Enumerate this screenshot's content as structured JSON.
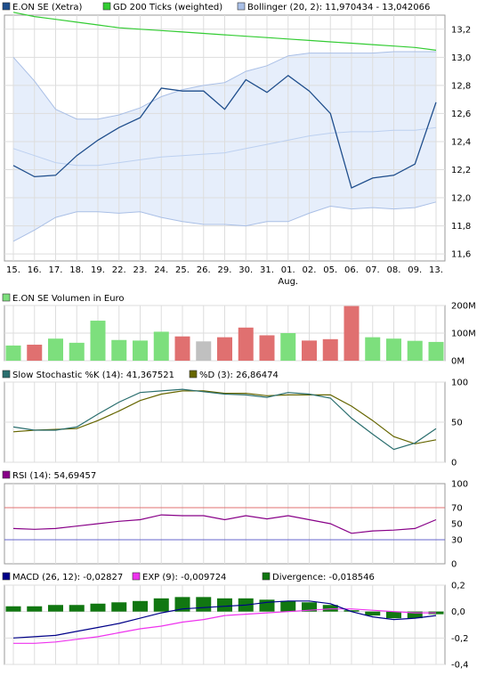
{
  "colors": {
    "price": "#1f4e8c",
    "gd200": "#33cc33",
    "bollinger_fill": "#e6eefb",
    "bollinger_line": "#a9bfe6",
    "bollinger_mid": "#bcd0f0",
    "volume_up": "#7ddf7d",
    "volume_down": "#e07070",
    "volume_flat": "#c0c0c0",
    "stoch_k": "#2a6e6e",
    "stoch_d": "#666600",
    "rsi": "#880088",
    "rsi_70": "#e07070",
    "rsi_30": "#6666cc",
    "macd": "#000088",
    "exp": "#ee33ee",
    "divergence": "#117711",
    "grid": "#dddddd"
  },
  "chart_data": [
    {
      "type": "line",
      "panel": "price",
      "x": [
        "15.",
        "16.",
        "17.",
        "18.",
        "19.",
        "22.",
        "23.",
        "24.",
        "25.",
        "26.",
        "29.",
        "30.",
        "31.",
        "01.",
        "02.",
        "05.",
        "06.",
        "07.",
        "08.",
        "09.",
        "13."
      ],
      "x_month_label": "Aug.",
      "yticks": [
        "11,6",
        "11,8",
        "12,0",
        "12,2",
        "12,4",
        "12,6",
        "12,8",
        "13,0",
        "13,2"
      ],
      "ylim": [
        11.55,
        13.3
      ],
      "legend": [
        {
          "label": "E.ON SE (Xetra)",
          "color": "#1f4e8c"
        },
        {
          "label": "GD 200 Ticks (weighted)",
          "color": "#33cc33"
        },
        {
          "label": "Bollinger (20, 2): 11,970434 - 13,042066",
          "color": "#a9bfe6"
        }
      ],
      "series": [
        {
          "id": "price",
          "values": [
            12.23,
            12.15,
            12.16,
            12.3,
            12.41,
            12.5,
            12.57,
            12.78,
            12.76,
            12.76,
            12.63,
            12.84,
            12.75,
            12.87,
            12.76,
            12.6,
            12.07,
            12.14,
            12.16,
            12.24,
            12.68
          ]
        },
        {
          "id": "gd200",
          "values": [
            13.32,
            13.29,
            13.27,
            13.25,
            13.23,
            13.21,
            13.2,
            13.19,
            13.18,
            13.17,
            13.16,
            13.15,
            13.14,
            13.13,
            13.12,
            13.11,
            13.1,
            13.09,
            13.08,
            13.07,
            13.05
          ]
        },
        {
          "id": "boll_upper",
          "values": [
            13.0,
            12.83,
            12.63,
            12.56,
            12.56,
            12.59,
            12.64,
            12.72,
            12.77,
            12.8,
            12.82,
            12.9,
            12.94,
            13.01,
            13.03,
            13.03,
            13.03,
            13.03,
            13.04,
            13.04,
            13.04
          ]
        },
        {
          "id": "boll_mid",
          "values": [
            12.35,
            12.3,
            12.25,
            12.23,
            12.23,
            12.25,
            12.27,
            12.29,
            12.3,
            12.31,
            12.32,
            12.35,
            12.38,
            12.41,
            12.44,
            12.46,
            12.47,
            12.47,
            12.48,
            12.48,
            12.5
          ]
        },
        {
          "id": "boll_lower",
          "values": [
            11.69,
            11.77,
            11.86,
            11.9,
            11.9,
            11.89,
            11.9,
            11.86,
            11.83,
            11.81,
            11.81,
            11.8,
            11.83,
            11.83,
            11.89,
            11.94,
            11.92,
            11.93,
            11.92,
            11.93,
            11.97
          ]
        }
      ]
    },
    {
      "type": "bar",
      "panel": "volume",
      "legend": [
        {
          "label": "E.ON SE Volumen in Euro",
          "color": "#7ddf7d"
        }
      ],
      "yticks": [
        "0M",
        "100M",
        "200M"
      ],
      "ylim": [
        0,
        200
      ],
      "values": [
        55,
        58,
        80,
        65,
        145,
        75,
        73,
        105,
        88,
        70,
        85,
        120,
        92,
        100,
        73,
        78,
        198,
        85,
        80,
        72,
        68
      ],
      "direction": [
        "up",
        "down",
        "up",
        "up",
        "up",
        "up",
        "up",
        "up",
        "down",
        "flat",
        "down",
        "down",
        "down",
        "up",
        "down",
        "down",
        "down",
        "up",
        "up",
        "up",
        "up"
      ]
    },
    {
      "type": "line",
      "panel": "stochastic",
      "legend": [
        {
          "label": "Slow Stochastic %K (14): 41,367521",
          "color": "#2a6e6e"
        },
        {
          "label": "%D (3): 26,86474",
          "color": "#666600"
        }
      ],
      "yticks": [
        "0",
        "50",
        "100"
      ],
      "ylim": [
        0,
        100
      ],
      "series": [
        {
          "id": "k",
          "values": [
            44,
            40,
            40,
            44,
            60,
            75,
            87,
            89,
            91,
            88,
            85,
            84,
            81,
            87,
            85,
            80,
            55,
            35,
            16,
            24,
            42
          ]
        },
        {
          "id": "d",
          "values": [
            38,
            40,
            41,
            42,
            52,
            64,
            77,
            85,
            89,
            89,
            86,
            86,
            83,
            84,
            84,
            84,
            70,
            52,
            32,
            23,
            28
          ]
        }
      ]
    },
    {
      "type": "line",
      "panel": "rsi",
      "legend": [
        {
          "label": "RSI (14): 54,69457",
          "color": "#880088"
        }
      ],
      "yticks": [
        "0",
        "30",
        "50",
        "70",
        "100"
      ],
      "ylim": [
        0,
        100
      ],
      "reference_lines": [
        70,
        30
      ],
      "series": [
        {
          "id": "rsi",
          "values": [
            44,
            43,
            44,
            47,
            50,
            53,
            55,
            61,
            60,
            60,
            55,
            60,
            56,
            60,
            55,
            50,
            38,
            41,
            42,
            44,
            55
          ]
        }
      ]
    },
    {
      "type": "bar",
      "panel": "macd",
      "legend": [
        {
          "label": "MACD (26, 12): -0,02827",
          "color": "#000088"
        },
        {
          "label": "EXP (9): -0,009724",
          "color": "#ee33ee"
        },
        {
          "label": "Divergence: -0,018546",
          "color": "#117711"
        }
      ],
      "yticks": [
        "-0,4",
        "-0,2",
        "0,0",
        "0,2"
      ],
      "ylim": [
        -0.4,
        0.2
      ],
      "divergence": [
        0.04,
        0.04,
        0.05,
        0.05,
        0.06,
        0.07,
        0.08,
        0.1,
        0.11,
        0.11,
        0.1,
        0.1,
        0.09,
        0.08,
        0.07,
        0.05,
        0.01,
        -0.03,
        -0.05,
        -0.05,
        -0.02
      ],
      "series": [
        {
          "id": "macd",
          "values": [
            -0.2,
            -0.19,
            -0.18,
            -0.15,
            -0.12,
            -0.09,
            -0.05,
            -0.01,
            0.02,
            0.03,
            0.04,
            0.05,
            0.07,
            0.08,
            0.08,
            0.06,
            0.0,
            -0.04,
            -0.06,
            -0.05,
            -0.03
          ]
        },
        {
          "id": "exp",
          "values": [
            -0.24,
            -0.24,
            -0.23,
            -0.21,
            -0.19,
            -0.16,
            -0.13,
            -0.11,
            -0.08,
            -0.06,
            -0.03,
            -0.02,
            -0.01,
            0.0,
            0.01,
            0.02,
            0.02,
            0.01,
            0.0,
            -0.01,
            -0.01
          ]
        }
      ]
    }
  ]
}
